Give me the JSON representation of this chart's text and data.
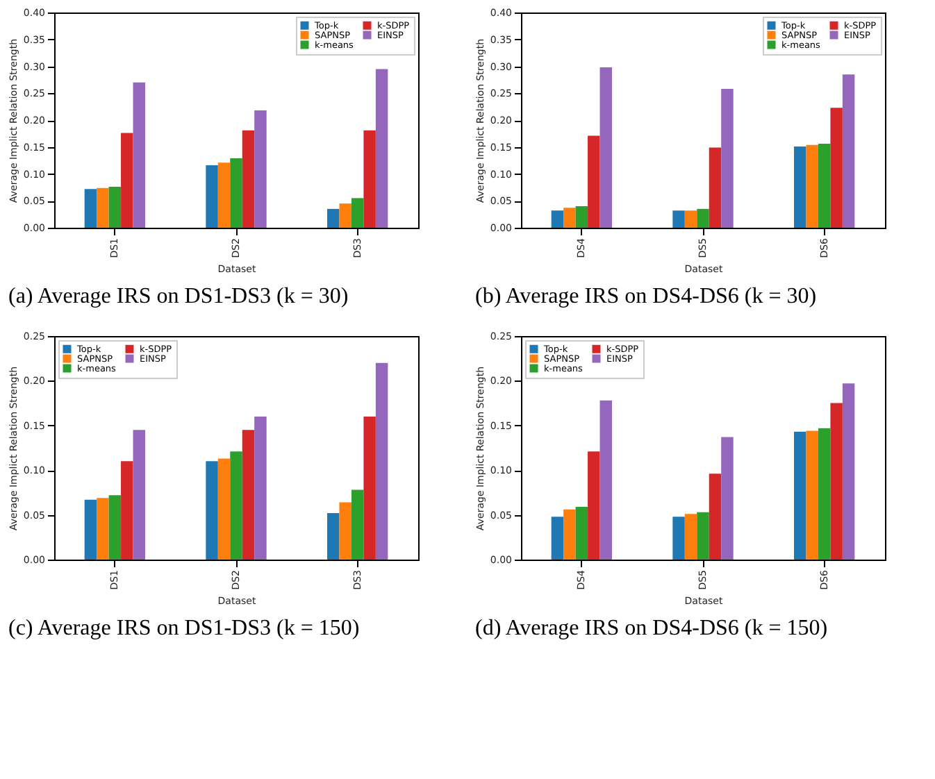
{
  "chart_data": [
    {
      "type": "bar",
      "xlabel": "Dataset",
      "ylabel": "Average Implict Relation Strength",
      "categories": [
        "DS1",
        "DS2",
        "DS3"
      ],
      "legend": "top right",
      "grid": false,
      "ylim": [
        0,
        0.4
      ],
      "yticks": [
        {
          "value": 0,
          "label": "0.00"
        },
        {
          "value": 0.05,
          "label": "0.05"
        },
        {
          "value": 0.1,
          "label": "0.10"
        },
        {
          "value": 0.15,
          "label": "0.15"
        },
        {
          "value": 0.2,
          "label": "0.20"
        },
        {
          "value": 0.25,
          "label": "0.25"
        },
        {
          "value": 0.3,
          "label": "0.30"
        },
        {
          "value": 0.35,
          "label": "0.35"
        },
        {
          "value": 0.4,
          "label": "0.40"
        }
      ],
      "annotations": [
        "(a) Average IRS on DS1-DS3 (k = 30)"
      ],
      "series": [
        {
          "name": "Top-k",
          "color": "#1f77b4",
          "values": [
            0.072,
            0.116,
            0.035
          ]
        },
        {
          "name": "SAPNSP",
          "color": "#ff7f0e",
          "values": [
            0.074,
            0.121,
            0.045
          ]
        },
        {
          "name": "k-means",
          "color": "#2ca02c",
          "values": [
            0.076,
            0.129,
            0.055
          ]
        },
        {
          "name": "k-SDPP",
          "color": "#d62728",
          "values": [
            0.176,
            0.181,
            0.181
          ]
        },
        {
          "name": "EINSP",
          "color": "#9467bd",
          "values": [
            0.27,
            0.218,
            0.295
          ]
        }
      ]
    },
    {
      "type": "bar",
      "xlabel": "Dataset",
      "ylabel": "Average Implict Relation Strength",
      "categories": [
        "DS4",
        "DS5",
        "DS6"
      ],
      "legend": "top right",
      "grid": false,
      "ylim": [
        0,
        0.4
      ],
      "yticks": [
        {
          "value": 0,
          "label": "0.00"
        },
        {
          "value": 0.05,
          "label": "0.05"
        },
        {
          "value": 0.1,
          "label": "0.10"
        },
        {
          "value": 0.15,
          "label": "0.15"
        },
        {
          "value": 0.2,
          "label": "0.20"
        },
        {
          "value": 0.25,
          "label": "0.25"
        },
        {
          "value": 0.3,
          "label": "0.30"
        },
        {
          "value": 0.35,
          "label": "0.35"
        },
        {
          "value": 0.4,
          "label": "0.40"
        }
      ],
      "annotations": [
        "(b) Average IRS on DS4-DS6 (k = 30)"
      ],
      "series": [
        {
          "name": "Top-k",
          "color": "#1f77b4",
          "values": [
            0.032,
            0.032,
            0.151
          ]
        },
        {
          "name": "SAPNSP",
          "color": "#ff7f0e",
          "values": [
            0.037,
            0.032,
            0.154
          ]
        },
        {
          "name": "k-means",
          "color": "#2ca02c",
          "values": [
            0.04,
            0.035,
            0.156
          ]
        },
        {
          "name": "k-SDPP",
          "color": "#d62728",
          "values": [
            0.171,
            0.149,
            0.223
          ]
        },
        {
          "name": "EINSP",
          "color": "#9467bd",
          "values": [
            0.298,
            0.258,
            0.285
          ]
        }
      ]
    },
    {
      "type": "bar",
      "xlabel": "Dataset",
      "ylabel": "Average Implict Relation Strength",
      "categories": [
        "DS1",
        "DS2",
        "DS3"
      ],
      "legend": "top left",
      "grid": false,
      "ylim": [
        0,
        0.25
      ],
      "yticks": [
        {
          "value": 0,
          "label": "0.00"
        },
        {
          "value": 0.05,
          "label": "0.05"
        },
        {
          "value": 0.1,
          "label": "0.10"
        },
        {
          "value": 0.15,
          "label": "0.15"
        },
        {
          "value": 0.2,
          "label": "0.20"
        },
        {
          "value": 0.25,
          "label": "0.25"
        }
      ],
      "annotations": [
        "(c) Average IRS on DS1-DS3 (k = 150)"
      ],
      "series": [
        {
          "name": "Top-k",
          "color": "#1f77b4",
          "values": [
            0.067,
            0.11,
            0.052
          ]
        },
        {
          "name": "SAPNSP",
          "color": "#ff7f0e",
          "values": [
            0.069,
            0.113,
            0.064
          ]
        },
        {
          "name": "k-means",
          "color": "#2ca02c",
          "values": [
            0.072,
            0.121,
            0.078
          ]
        },
        {
          "name": "k-SDPP",
          "color": "#d62728",
          "values": [
            0.11,
            0.145,
            0.16
          ]
        },
        {
          "name": "EINSP",
          "color": "#9467bd",
          "values": [
            0.145,
            0.16,
            0.22
          ]
        }
      ]
    },
    {
      "type": "bar",
      "xlabel": "Dataset",
      "ylabel": "Average Implict Relation Strength",
      "categories": [
        "DS4",
        "DS5",
        "DS6"
      ],
      "legend": "top left",
      "grid": false,
      "ylim": [
        0,
        0.25
      ],
      "yticks": [
        {
          "value": 0,
          "label": "0.00"
        },
        {
          "value": 0.05,
          "label": "0.05"
        },
        {
          "value": 0.1,
          "label": "0.10"
        },
        {
          "value": 0.15,
          "label": "0.15"
        },
        {
          "value": 0.2,
          "label": "0.20"
        },
        {
          "value": 0.25,
          "label": "0.25"
        }
      ],
      "annotations": [
        "(d) Average IRS on DS4-DS6 (k = 150)"
      ],
      "series": [
        {
          "name": "Top-k",
          "color": "#1f77b4",
          "values": [
            0.048,
            0.048,
            0.143
          ]
        },
        {
          "name": "SAPNSP",
          "color": "#ff7f0e",
          "values": [
            0.056,
            0.051,
            0.144
          ]
        },
        {
          "name": "k-means",
          "color": "#2ca02c",
          "values": [
            0.059,
            0.053,
            0.147
          ]
        },
        {
          "name": "k-SDPP",
          "color": "#d62728",
          "values": [
            0.121,
            0.096,
            0.175
          ]
        },
        {
          "name": "EINSP",
          "color": "#9467bd",
          "values": [
            0.178,
            0.137,
            0.197
          ]
        }
      ]
    }
  ]
}
